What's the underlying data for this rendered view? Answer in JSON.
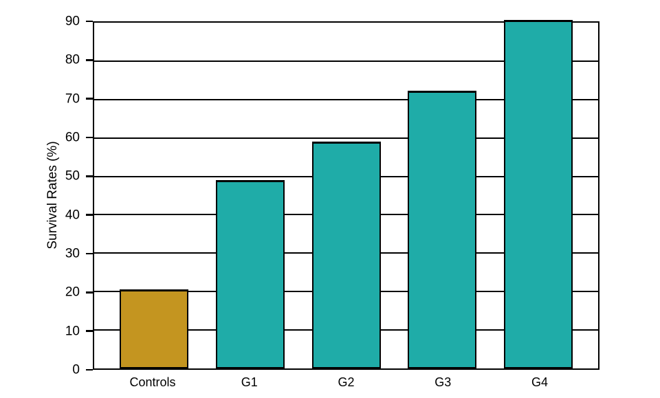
{
  "chart_data": {
    "type": "bar",
    "title": "",
    "categories": [
      "Controls",
      "G1",
      "G2",
      "G3",
      "G4"
    ],
    "values": [
      20.5,
      49,
      59,
      72.3,
      90.7
    ],
    "bar_colors": [
      "#c49520",
      "#1faca8",
      "#1faca8",
      "#1faca8",
      "#1faca8"
    ],
    "bar_edge_color": "#000000",
    "xlabel": "",
    "ylabel": "Survival Rates (%)",
    "ylim": [
      0,
      90
    ],
    "yticks": [
      0,
      10,
      20,
      30,
      40,
      50,
      60,
      70,
      80,
      90
    ],
    "grid": true,
    "grid_color": "#000000",
    "legend": false,
    "background": "#ffffff"
  }
}
